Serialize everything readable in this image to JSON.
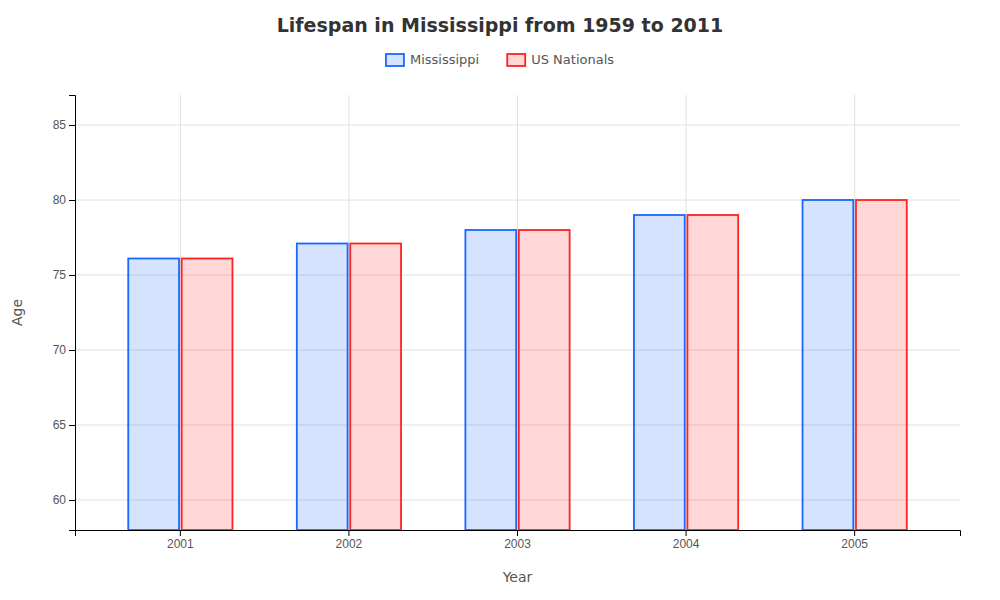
{
  "chart_data": {
    "type": "bar",
    "title": "Lifespan in Mississippi from 1959 to 2011",
    "xlabel": "Year",
    "ylabel": "Age",
    "categories": [
      "2001",
      "2002",
      "2003",
      "2004",
      "2005"
    ],
    "series": [
      {
        "name": "Mississippi",
        "color": "#1a66ff",
        "values": [
          76.1,
          77.1,
          78.0,
          79.0,
          80.0
        ]
      },
      {
        "name": "US Nationals",
        "color": "#ff2222",
        "values": [
          76.1,
          77.1,
          78.0,
          79.0,
          80.0
        ]
      }
    ],
    "ylim": [
      58,
      87
    ],
    "yticks": [
      60,
      65,
      70,
      75,
      80,
      85
    ],
    "grid": true,
    "legend": "top"
  }
}
